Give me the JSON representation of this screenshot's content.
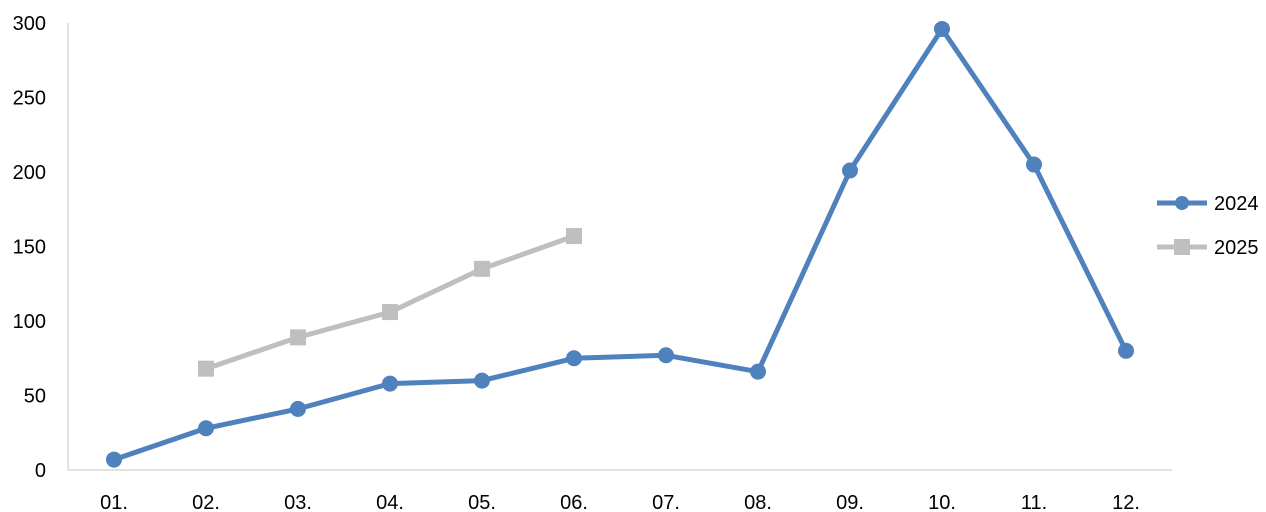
{
  "chart_data": {
    "type": "line",
    "categories": [
      "01.",
      "02.",
      "03.",
      "04.",
      "05.",
      "06.",
      "07.",
      "08.",
      "09.",
      "10.",
      "11.",
      "12."
    ],
    "series": [
      {
        "name": "2024",
        "values": [
          7,
          28,
          41,
          58,
          60,
          75,
          77,
          66,
          201,
          296,
          205,
          80
        ],
        "color": "#4F81BD",
        "marker": "circle"
      },
      {
        "name": "2025",
        "values": [
          null,
          68,
          89,
          106,
          135,
          157,
          null,
          null,
          null,
          null,
          null,
          null
        ],
        "color": "#BFBFBF",
        "marker": "square"
      }
    ],
    "title": "",
    "xlabel": "",
    "ylabel": "",
    "ylim": [
      0,
      300
    ],
    "yticks": [
      "0",
      "50",
      "100",
      "150",
      "200",
      "250",
      "300"
    ],
    "grid": false,
    "legend_position": "right",
    "axis_color": "#D9D9D9"
  }
}
